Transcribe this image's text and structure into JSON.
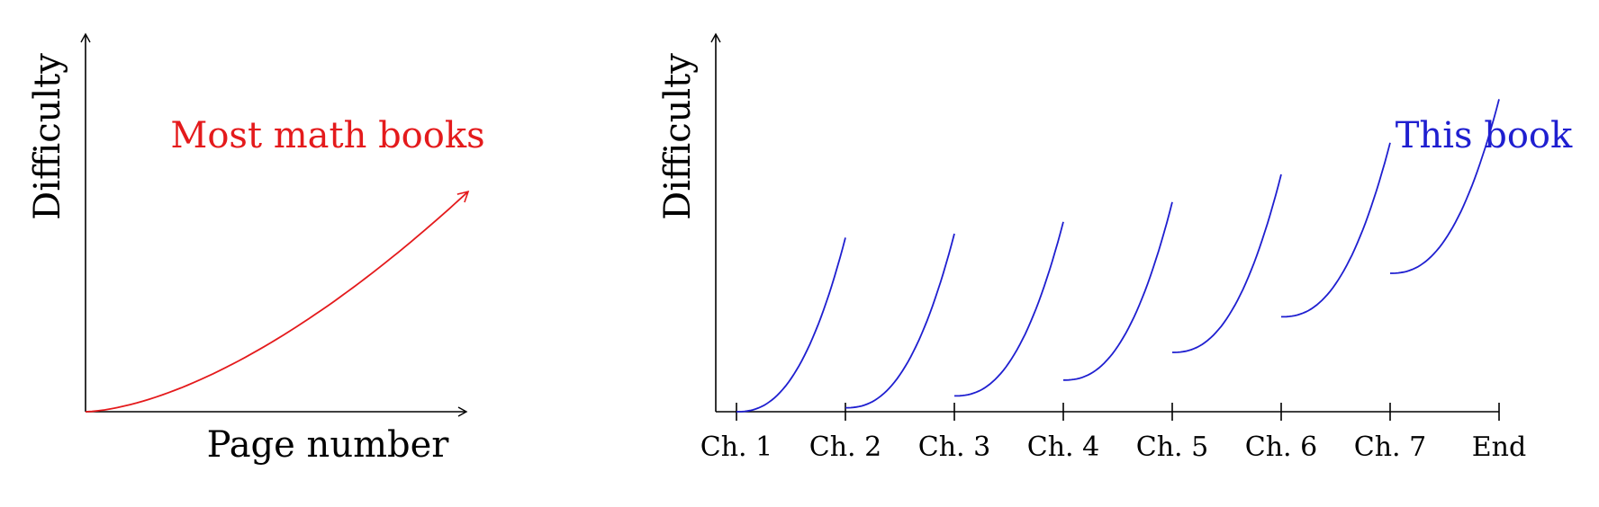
{
  "colors": {
    "axis": "#000000",
    "left_curve": "#e41a1c",
    "right_curve": "#1f1fd0"
  },
  "chart_data": [
    {
      "type": "line",
      "ylabel": "Difficulty",
      "xlabel": "Page number",
      "series": [
        {
          "name": "Most math books",
          "x": [
            0,
            0.25,
            0.5,
            0.75,
            1.0
          ],
          "y": [
            0,
            0.09,
            0.26,
            0.5,
            0.79
          ]
        }
      ]
    },
    {
      "type": "line",
      "ylabel": "Difficulty",
      "xlabel": "",
      "categories": [
        "Ch. 1",
        "Ch. 2",
        "Ch. 3",
        "Ch. 4",
        "Ch. 5",
        "Ch. 6",
        "Ch. 7",
        "End"
      ],
      "series": [
        {
          "name": "This book",
          "segments": [
            {
              "start": 0.0,
              "base": 0.0,
              "end": 0.44
            },
            {
              "start": 1.0,
              "base": 0.01,
              "end": 0.45
            },
            {
              "start": 2.0,
              "base": 0.04,
              "end": 0.48
            },
            {
              "start": 3.0,
              "base": 0.08,
              "end": 0.53
            },
            {
              "start": 4.0,
              "base": 0.15,
              "end": 0.6
            },
            {
              "start": 5.0,
              "base": 0.24,
              "end": 0.68
            },
            {
              "start": 6.0,
              "base": 0.35,
              "end": 0.79
            }
          ]
        }
      ]
    }
  ]
}
